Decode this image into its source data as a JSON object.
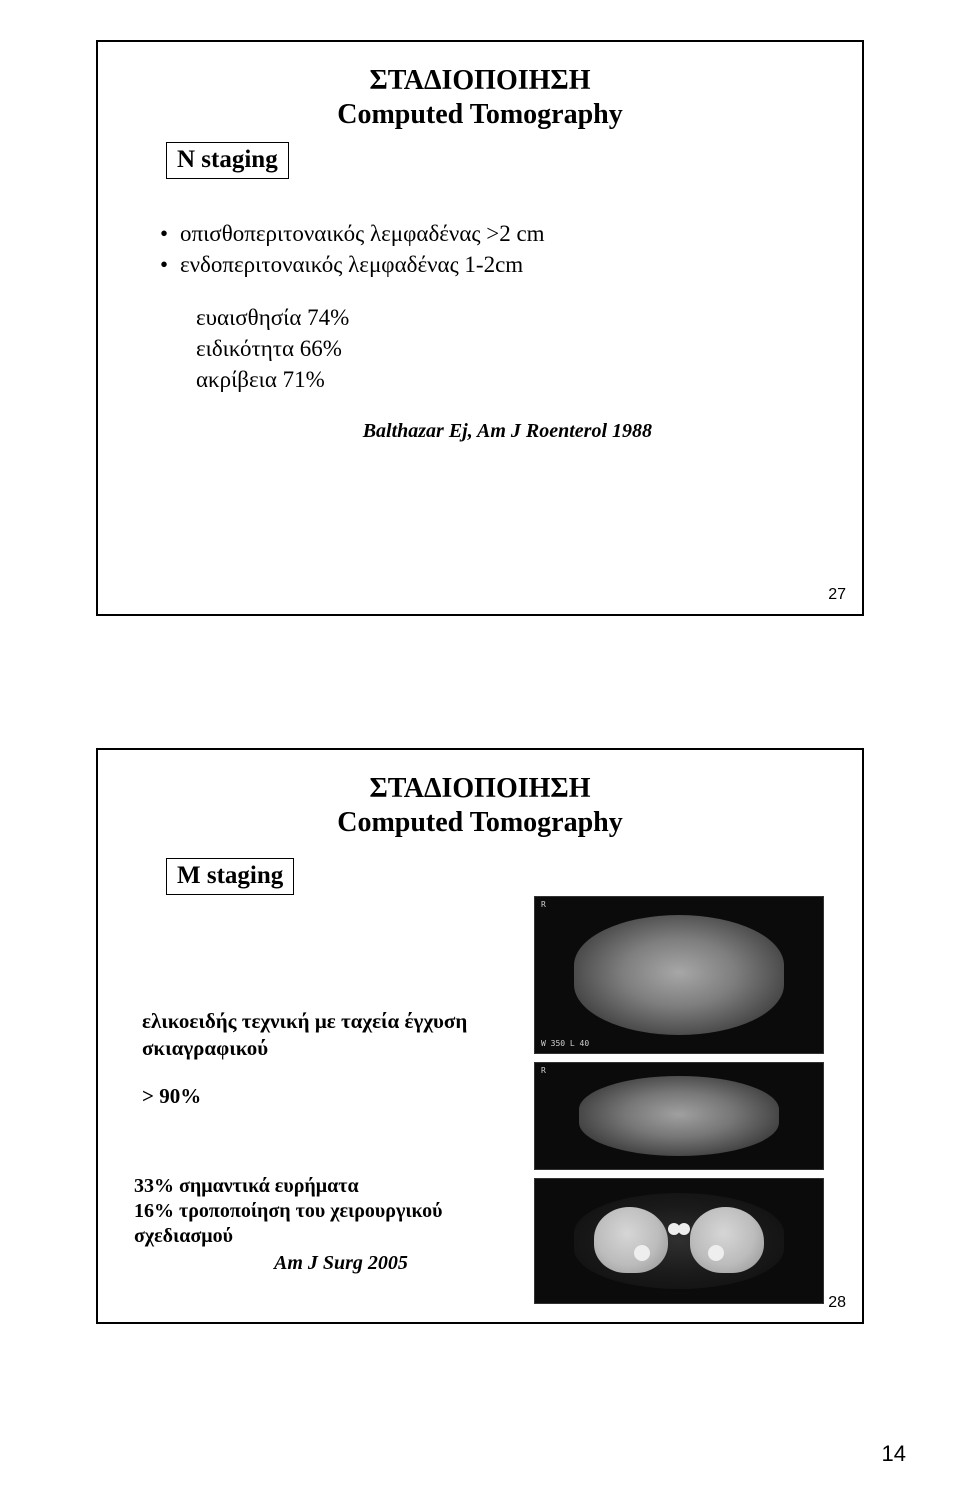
{
  "slide1": {
    "title_line1": "ΣΤΑΔΙΟΠΟΙΗΣΗ",
    "title_line2": "Computed Tomography",
    "staging_label": "N staging",
    "bullet1": "οπισθοπεριτοναικός λεμφαδένας >2 cm",
    "bullet2": "ενδοπεριτοναικός λεμφαδένας 1-2cm",
    "sensitivity": "ευαισθησία 74%",
    "specificity": "ειδικότητα 66%",
    "accuracy": "ακρίβεια 71%",
    "citation": "Balthazar Ej, Am J Roenterol 1988",
    "page": "27"
  },
  "slide2": {
    "title_line1": "ΣΤΑΔΙΟΠΟΙΗΣΗ",
    "title_line2": "Computed Tomography",
    "staging_label": "M staging",
    "helical_line1": "ελικοειδής τεχνική με ταχεία έγχυση",
    "helical_line2": "σκιαγραφικού",
    "gt90": "> 90%",
    "finding1": "33% σημαντικά ευρήματα",
    "finding2": "16% τροποποίηση του χειρουργικού σχεδιασμού",
    "finding_cite": "Am J Surg 2005",
    "page": "28"
  },
  "footer_page": "14",
  "colors": {
    "page_bg": "#ffffff",
    "text": "#000000",
    "slide_border": "#000000",
    "ct_bg": "#0b0b0b",
    "ct_tissue": "#9a9a9a"
  }
}
